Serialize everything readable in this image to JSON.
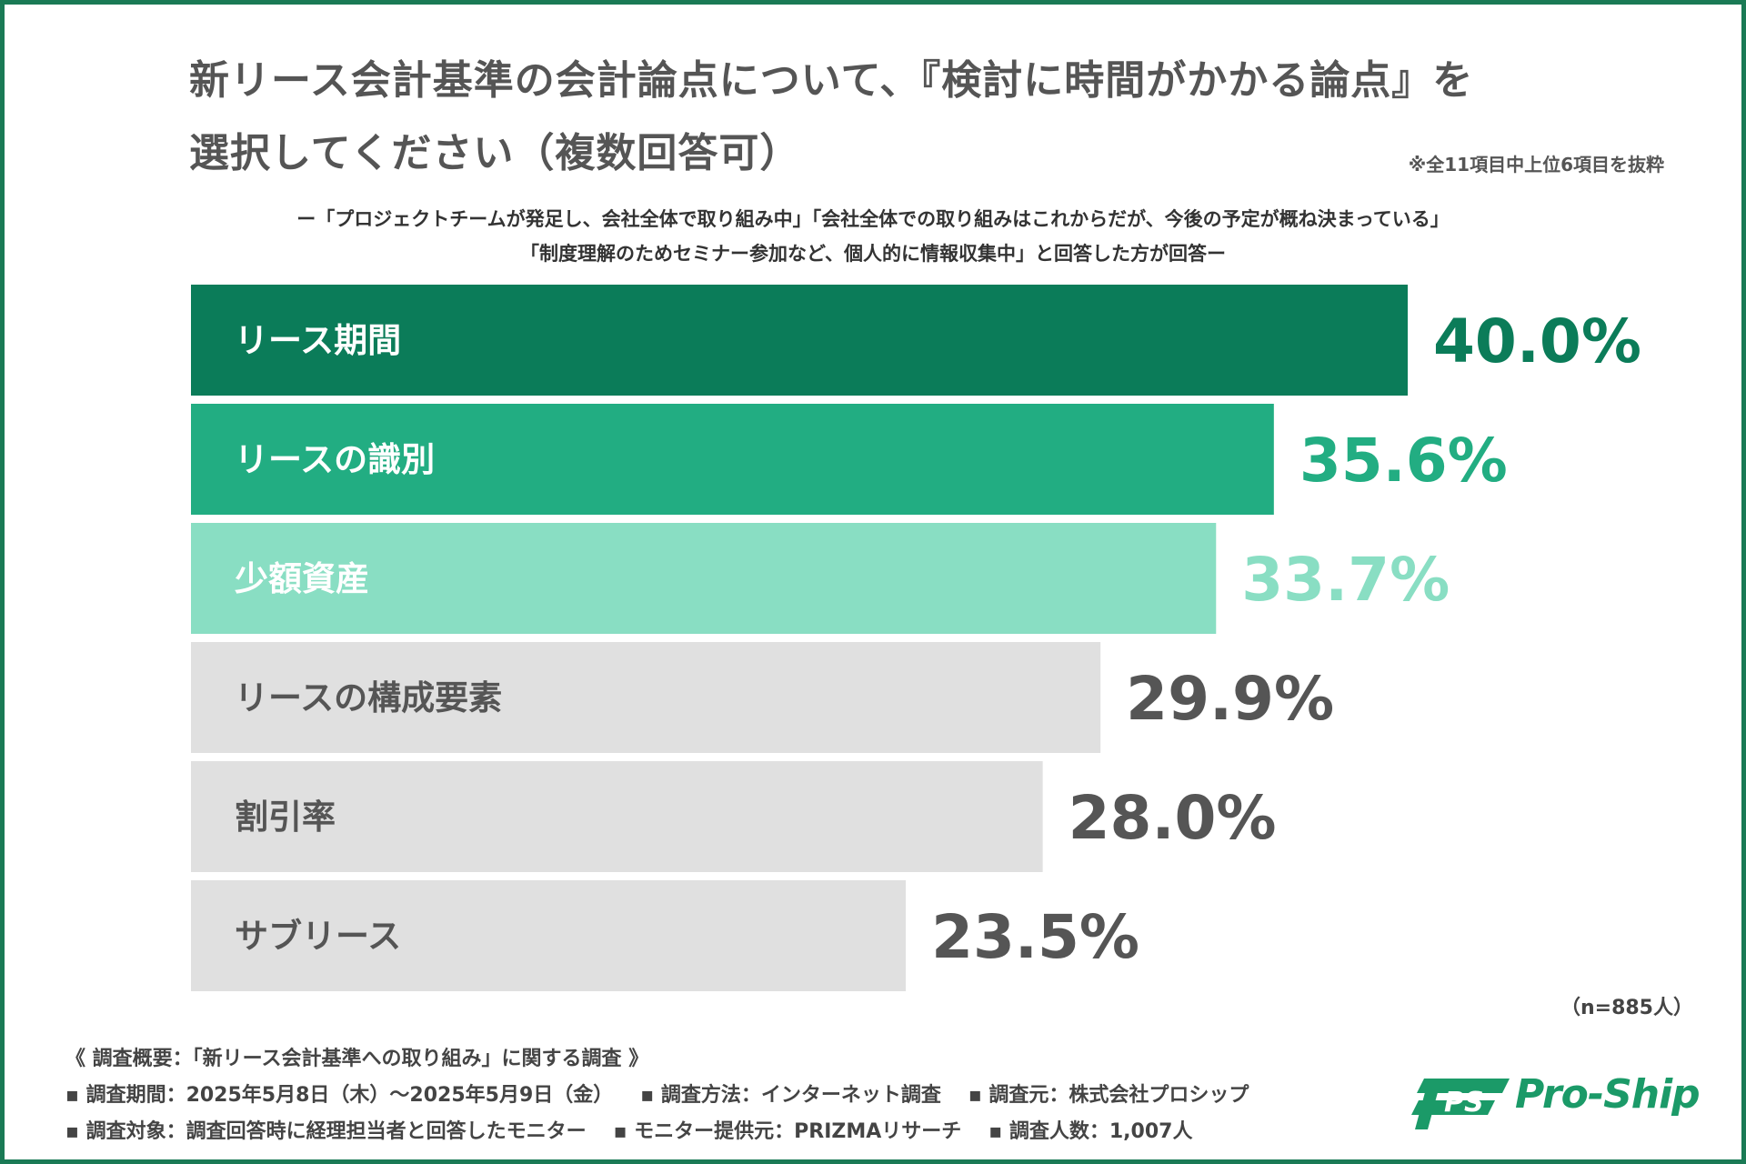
{
  "title": {
    "line1": "新リース会計基準の会計論点について、『検討に時間がかかる論点』を",
    "line2": "選択してください（複数回答可）"
  },
  "note": "※全11項目中上位6項目を抜粋",
  "subtitle": {
    "line1": "ー「プロジェクトチームが発足し、会社全体で取り組み中」「会社全体での取り組みはこれからだが、今後の予定が概ね決まっている」",
    "line2": "「制度理解のためセミナー参加など、個人的に情報収集中」と回答した方が回答ー"
  },
  "chart_data": {
    "type": "bar",
    "orientation": "horizontal",
    "categories": [
      "リース期間",
      "リースの識別",
      "少額資産",
      "リースの構成要素",
      "割引率",
      "サブリース"
    ],
    "values": [
      40.0,
      35.6,
      33.7,
      29.9,
      28.0,
      23.5
    ],
    "value_labels": [
      "40.0%",
      "35.6%",
      "33.7%",
      "29.9%",
      "28.0%",
      "23.5%"
    ],
    "bar_colors": [
      "#0b7c59",
      "#22ad82",
      "#89dec3",
      "#e0e0e0",
      "#e0e0e0",
      "#e0e0e0"
    ],
    "label_colors": [
      "#ffffff",
      "#ffffff",
      "#ffffff",
      "#555555",
      "#555555",
      "#555555"
    ],
    "value_colors": [
      "#0b7c59",
      "#22ad82",
      "#89dec3",
      "#555555",
      "#555555",
      "#555555"
    ],
    "xlim": [
      0,
      40
    ],
    "title": "新リース会計基準の会計論点について、『検討に時間がかかる論点』を選択してください（複数回答可）",
    "xlabel": "",
    "ylabel": ""
  },
  "sample_size": "（n=885人）",
  "survey": {
    "heading": "《 調査概要：「新リース会計基準への取り組み」に関する調査 》",
    "period": "▪ 調査期間：2025年5月8日（木）～2025年5月9日（金）",
    "method": "▪ 調査方法：インターネット調査",
    "organizer": "▪ 調査元：株式会社プロシップ",
    "target": "▪ 調査対象：調査回答時に経理担当者と回答したモニター",
    "provider": "▪ モニター提供元：PRIZMAリサーチ",
    "respondents": "▪ 調査人数：1,007人"
  },
  "logo": {
    "mark": "PS",
    "text": "Pro-Ship",
    "color": "#1b9a68"
  }
}
